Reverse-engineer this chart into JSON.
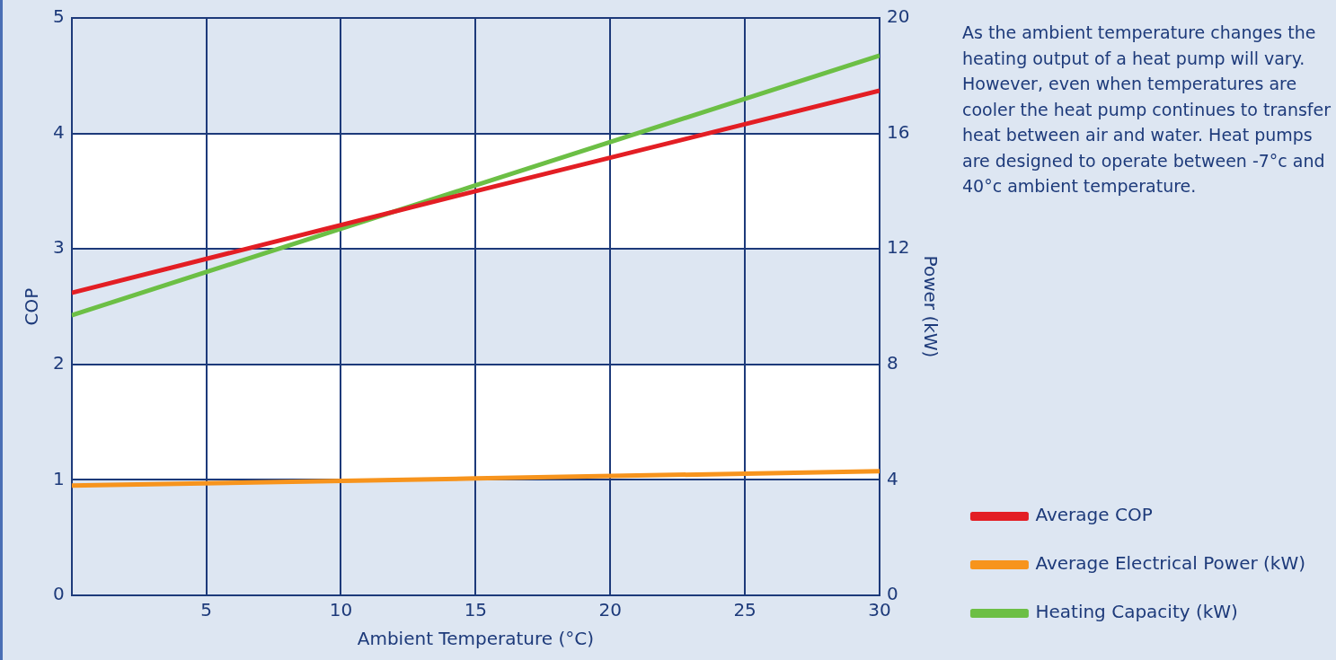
{
  "chart_data": {
    "type": "line",
    "xlabel": "Ambient Temperature (°C)",
    "ylabel": "COP",
    "y2label": "Power (kW)",
    "xlim": [
      0,
      30
    ],
    "xticks": [
      5,
      10,
      15,
      20,
      25,
      30
    ],
    "ylim": [
      0,
      5
    ],
    "yticks": [
      0,
      1,
      2,
      3,
      4,
      5
    ],
    "y2lim": [
      0,
      20
    ],
    "y2ticks": [
      0,
      4,
      8,
      12,
      16,
      20
    ],
    "grid": true,
    "legend": "right",
    "marker": "none",
    "line_style": "solid",
    "bands": [
      {
        "axis": "y",
        "from": 1,
        "to": 2,
        "color": "#ffffff"
      },
      {
        "axis": "y",
        "from": 3,
        "to": 4,
        "color": "#ffffff"
      }
    ],
    "annotations": [
      "As the ambient temperature changes the heating output of a heat pump will vary. However, even when temperatures are cooler the heat pump continues to transfer heat between air and water. Heat pumps are designed to operate between -7°c and 40°c ambient temperature."
    ],
    "series": [
      {
        "name": "Average COP",
        "color": "#e31e24",
        "x": [
          0,
          15,
          30
        ],
        "values": [
          2.62,
          3.5,
          4.37
        ]
      },
      {
        "name": "Average Electrical Power (kW)",
        "color": "#f7941d",
        "axis": "y2",
        "x": [
          0,
          15,
          30
        ],
        "values": [
          3.8,
          4.05,
          4.3
        ]
      },
      {
        "name": "Heating Capacity (kW)",
        "color": "#6cbf45",
        "axis": "y2",
        "x": [
          0,
          15,
          30
        ],
        "values": [
          9.7,
          14.2,
          18.7
        ]
      }
    ]
  }
}
